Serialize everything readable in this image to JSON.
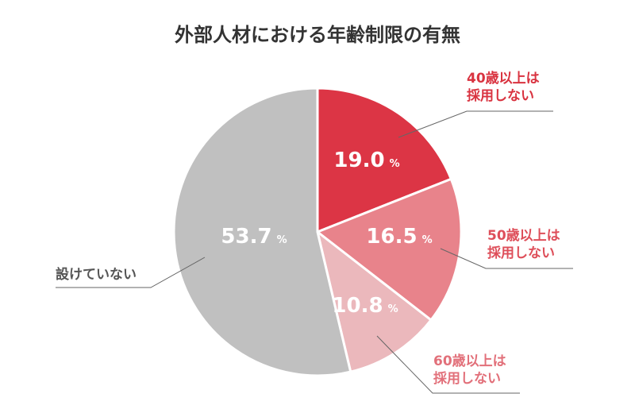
{
  "chart_data": {
    "type": "pie",
    "title": "外部人材における年齢制限の有無",
    "unit": "%",
    "start_angle_deg": 0,
    "direction": "clockwise",
    "slices": [
      {
        "label_lines": [
          "40歳以上は",
          "採用しない"
        ],
        "value": 19.0,
        "display": "19.0",
        "color": "#dc3545",
        "label_color": "#d93340"
      },
      {
        "label_lines": [
          "50歳以上は",
          "採用しない"
        ],
        "value": 16.5,
        "display": "16.5",
        "color": "#e8838b",
        "label_color": "#de4f5a"
      },
      {
        "label_lines": [
          "60歳以上は",
          "採用しない"
        ],
        "value": 10.8,
        "display": "10.8",
        "color": "#ebb8bc",
        "label_color": "#e2707a"
      },
      {
        "label_lines": [
          "設けていない"
        ],
        "value": 53.7,
        "display": "53.7",
        "color": "#c0c0c0",
        "label_color": "#555555"
      }
    ]
  }
}
